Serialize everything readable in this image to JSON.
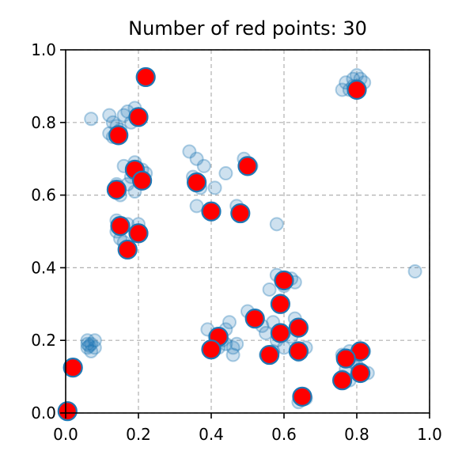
{
  "chart_data": {
    "type": "scatter",
    "title": "Number of red points: 30",
    "xlim": [
      0.0,
      1.0
    ],
    "ylim": [
      0.0,
      1.0
    ],
    "grid": true,
    "xticks": [
      "0.0",
      "0.2",
      "0.4",
      "0.6",
      "0.8",
      "1.0"
    ],
    "yticks": [
      "0.0",
      "0.2",
      "0.4",
      "0.6",
      "0.8",
      "1.0"
    ],
    "colors": {
      "background_points": "#1f77b4",
      "red_fill": "#ff0000",
      "red_edge": "#1f77b4",
      "grid": "#b0b0b0"
    },
    "series": [
      {
        "style": "faint-blue",
        "points": [
          [
            0.07,
            0.81
          ],
          [
            0.12,
            0.82
          ],
          [
            0.13,
            0.8
          ],
          [
            0.16,
            0.82
          ],
          [
            0.18,
            0.8
          ],
          [
            0.15,
            0.78
          ],
          [
            0.13,
            0.76
          ],
          [
            0.14,
            0.79
          ],
          [
            0.2,
            0.81
          ],
          [
            0.17,
            0.83
          ],
          [
            0.12,
            0.77
          ],
          [
            0.19,
            0.84
          ],
          [
            0.16,
            0.68
          ],
          [
            0.19,
            0.69
          ],
          [
            0.21,
            0.67
          ],
          [
            0.17,
            0.63
          ],
          [
            0.19,
            0.61
          ],
          [
            0.22,
            0.66
          ],
          [
            0.18,
            0.65
          ],
          [
            0.15,
            0.6
          ],
          [
            0.14,
            0.63
          ],
          [
            0.14,
            0.5
          ],
          [
            0.17,
            0.52
          ],
          [
            0.2,
            0.52
          ],
          [
            0.15,
            0.48
          ],
          [
            0.16,
            0.47
          ],
          [
            0.14,
            0.53
          ],
          [
            0.34,
            0.72
          ],
          [
            0.36,
            0.7
          ],
          [
            0.38,
            0.68
          ],
          [
            0.35,
            0.65
          ],
          [
            0.37,
            0.62
          ],
          [
            0.41,
            0.62
          ],
          [
            0.44,
            0.66
          ],
          [
            0.36,
            0.57
          ],
          [
            0.4,
            0.56
          ],
          [
            0.47,
            0.57
          ],
          [
            0.49,
            0.7
          ],
          [
            0.51,
            0.68
          ],
          [
            0.58,
            0.52
          ],
          [
            0.06,
            0.18
          ],
          [
            0.07,
            0.19
          ],
          [
            0.08,
            0.2
          ],
          [
            0.06,
            0.2
          ],
          [
            0.07,
            0.17
          ],
          [
            0.06,
            0.19
          ],
          [
            0.08,
            0.18
          ],
          [
            0.065,
            0.185
          ],
          [
            0.01,
            0.12
          ],
          [
            0.02,
            0.13
          ],
          [
            0.005,
            0.01
          ],
          [
            0.39,
            0.23
          ],
          [
            0.41,
            0.21
          ],
          [
            0.43,
            0.2
          ],
          [
            0.44,
            0.23
          ],
          [
            0.45,
            0.25
          ],
          [
            0.46,
            0.18
          ],
          [
            0.47,
            0.19
          ],
          [
            0.46,
            0.16
          ],
          [
            0.44,
            0.19
          ],
          [
            0.4,
            0.17
          ],
          [
            0.42,
            0.18
          ],
          [
            0.5,
            0.28
          ],
          [
            0.52,
            0.26
          ],
          [
            0.54,
            0.24
          ],
          [
            0.55,
            0.22
          ],
          [
            0.57,
            0.25
          ],
          [
            0.58,
            0.2
          ],
          [
            0.6,
            0.22
          ],
          [
            0.62,
            0.21
          ],
          [
            0.63,
            0.26
          ],
          [
            0.64,
            0.23
          ],
          [
            0.66,
            0.18
          ],
          [
            0.56,
            0.34
          ],
          [
            0.58,
            0.38
          ],
          [
            0.62,
            0.37
          ],
          [
            0.63,
            0.36
          ],
          [
            0.59,
            0.31
          ],
          [
            0.6,
            0.35
          ],
          [
            0.55,
            0.16
          ],
          [
            0.57,
            0.17
          ],
          [
            0.6,
            0.18
          ],
          [
            0.64,
            0.16
          ],
          [
            0.66,
            0.04
          ],
          [
            0.65,
            0.05
          ],
          [
            0.64,
            0.03
          ],
          [
            0.76,
            0.16
          ],
          [
            0.78,
            0.17
          ],
          [
            0.8,
            0.16
          ],
          [
            0.82,
            0.17
          ],
          [
            0.79,
            0.14
          ],
          [
            0.77,
            0.12
          ],
          [
            0.81,
            0.12
          ],
          [
            0.76,
            0.1
          ],
          [
            0.78,
            0.09
          ],
          [
            0.8,
            0.13
          ],
          [
            0.83,
            0.11
          ],
          [
            0.77,
            0.91
          ],
          [
            0.79,
            0.92
          ],
          [
            0.81,
            0.92
          ],
          [
            0.8,
            0.9
          ],
          [
            0.78,
            0.89
          ],
          [
            0.76,
            0.89
          ],
          [
            0.82,
            0.91
          ],
          [
            0.8,
            0.93
          ],
          [
            0.79,
            0.9
          ],
          [
            0.96,
            0.39
          ]
        ]
      },
      {
        "style": "red",
        "points": [
          [
            0.22,
            0.925
          ],
          [
            0.8,
            0.89
          ],
          [
            0.2,
            0.815
          ],
          [
            0.145,
            0.765
          ],
          [
            0.19,
            0.67
          ],
          [
            0.21,
            0.64
          ],
          [
            0.14,
            0.615
          ],
          [
            0.36,
            0.635
          ],
          [
            0.5,
            0.68
          ],
          [
            0.4,
            0.555
          ],
          [
            0.48,
            0.55
          ],
          [
            0.15,
            0.515
          ],
          [
            0.2,
            0.495
          ],
          [
            0.17,
            0.45
          ],
          [
            0.6,
            0.365
          ],
          [
            0.59,
            0.3
          ],
          [
            0.52,
            0.26
          ],
          [
            0.42,
            0.21
          ],
          [
            0.4,
            0.175
          ],
          [
            0.59,
            0.22
          ],
          [
            0.64,
            0.235
          ],
          [
            0.64,
            0.17
          ],
          [
            0.56,
            0.16
          ],
          [
            0.65,
            0.045
          ],
          [
            0.81,
            0.17
          ],
          [
            0.77,
            0.15
          ],
          [
            0.81,
            0.11
          ],
          [
            0.76,
            0.09
          ],
          [
            0.02,
            0.125
          ],
          [
            0.005,
            0.005
          ]
        ]
      }
    ]
  }
}
